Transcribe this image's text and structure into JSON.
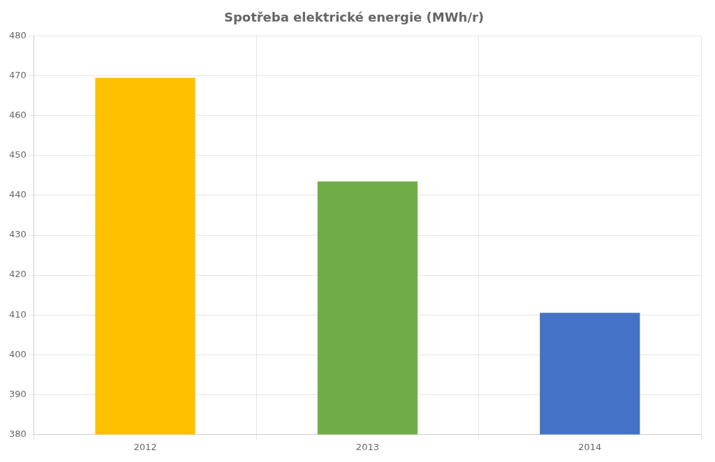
{
  "chart_data": {
    "type": "bar",
    "title": "Spotřeba elektrické energie (MWh/r)",
    "categories": [
      "2012",
      "2013",
      "2014"
    ],
    "values": [
      469.5,
      443.5,
      410.5
    ],
    "colors": [
      "#FFC000",
      "#70AD47",
      "#4472C4"
    ],
    "ylim": [
      380,
      480
    ],
    "yticks": [
      380,
      390,
      400,
      410,
      420,
      430,
      440,
      450,
      460,
      470,
      480
    ],
    "grid": true
  }
}
